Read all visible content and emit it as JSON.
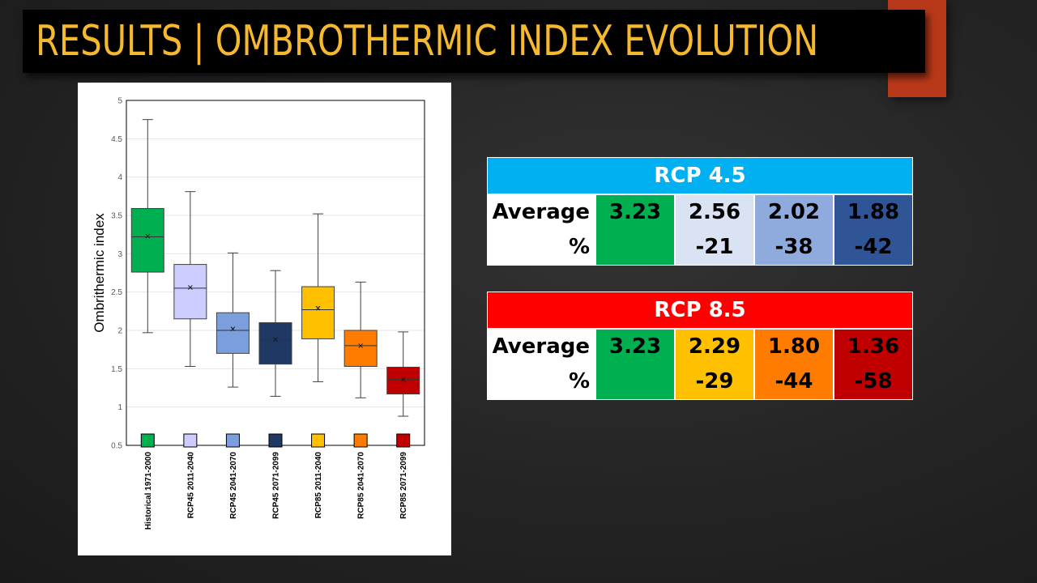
{
  "title": "RESULTS | OMBROTHERMIC INDEX EVOLUTION",
  "colors": {
    "title_text": "#f5b82e",
    "accent": "#b8391a",
    "rcp45_header": "#00b0f0",
    "rcp85_header": "#ff0000"
  },
  "chart_data": {
    "type": "box",
    "title": "",
    "xlabel": "",
    "ylabel": "Ombrithermic index",
    "ylim": [
      0.5,
      5
    ],
    "yticks": [
      "5",
      "4.5",
      "4",
      "3.5",
      "3",
      "2.5",
      "2",
      "1.5",
      "1",
      "0.5"
    ],
    "grid": true,
    "categories": [
      "Historical 1971-2000",
      "RCP45 2011-2040",
      "RCP45 2041-2070",
      "RCP45 2071-2099",
      "RCP85 2011-2040",
      "RCP85 2041-2070",
      "RCP85 2071-2099"
    ],
    "series": [
      {
        "category": "Historical 1971-2000",
        "min": 1.97,
        "q1": 2.76,
        "median": 3.22,
        "mean": 3.23,
        "q3": 3.59,
        "max": 4.75,
        "color": "#00b050"
      },
      {
        "category": "RCP45 2011-2040",
        "min": 1.53,
        "q1": 2.15,
        "median": 2.55,
        "mean": 2.56,
        "q3": 2.86,
        "max": 3.81,
        "color": "#ccccff"
      },
      {
        "category": "RCP45 2041-2070",
        "min": 1.26,
        "q1": 1.7,
        "median": 2.0,
        "mean": 2.02,
        "q3": 2.23,
        "max": 3.01,
        "color": "#7b9fdd"
      },
      {
        "category": "RCP45 2071-2099",
        "min": 1.14,
        "q1": 1.56,
        "median": 1.88,
        "mean": 1.88,
        "q3": 2.1,
        "max": 2.78,
        "color": "#1f3864"
      },
      {
        "category": "RCP85 2011-2040",
        "min": 1.33,
        "q1": 1.89,
        "median": 2.27,
        "mean": 2.29,
        "q3": 2.57,
        "max": 3.52,
        "color": "#ffc000"
      },
      {
        "category": "RCP85 2041-2070",
        "min": 1.12,
        "q1": 1.53,
        "median": 1.8,
        "mean": 1.8,
        "q3": 2.0,
        "max": 2.63,
        "color": "#ff7c00"
      },
      {
        "category": "RCP85 2071-2099",
        "min": 0.88,
        "q1": 1.17,
        "median": 1.36,
        "mean": 1.36,
        "q3": 1.52,
        "max": 1.98,
        "color": "#c00000"
      }
    ]
  },
  "tables": [
    {
      "header": "RCP 4.5",
      "row_labels": [
        "Average",
        "%"
      ],
      "cells": [
        {
          "average": "3.23",
          "percent": "",
          "color": "#00b050"
        },
        {
          "average": "2.56",
          "percent": "-21",
          "color": "#dae3f3"
        },
        {
          "average": "2.02",
          "percent": "-38",
          "color": "#8faadc"
        },
        {
          "average": "1.88",
          "percent": "-42",
          "color": "#2f5597"
        }
      ]
    },
    {
      "header": "RCP 8.5",
      "row_labels": [
        "Average",
        "%"
      ],
      "cells": [
        {
          "average": "3.23",
          "percent": "",
          "color": "#00b050"
        },
        {
          "average": "2.29",
          "percent": "-29",
          "color": "#ffc000"
        },
        {
          "average": "1.80",
          "percent": "-44",
          "color": "#ff7c00"
        },
        {
          "average": "1.36",
          "percent": "-58",
          "color": "#c00000"
        }
      ]
    }
  ]
}
